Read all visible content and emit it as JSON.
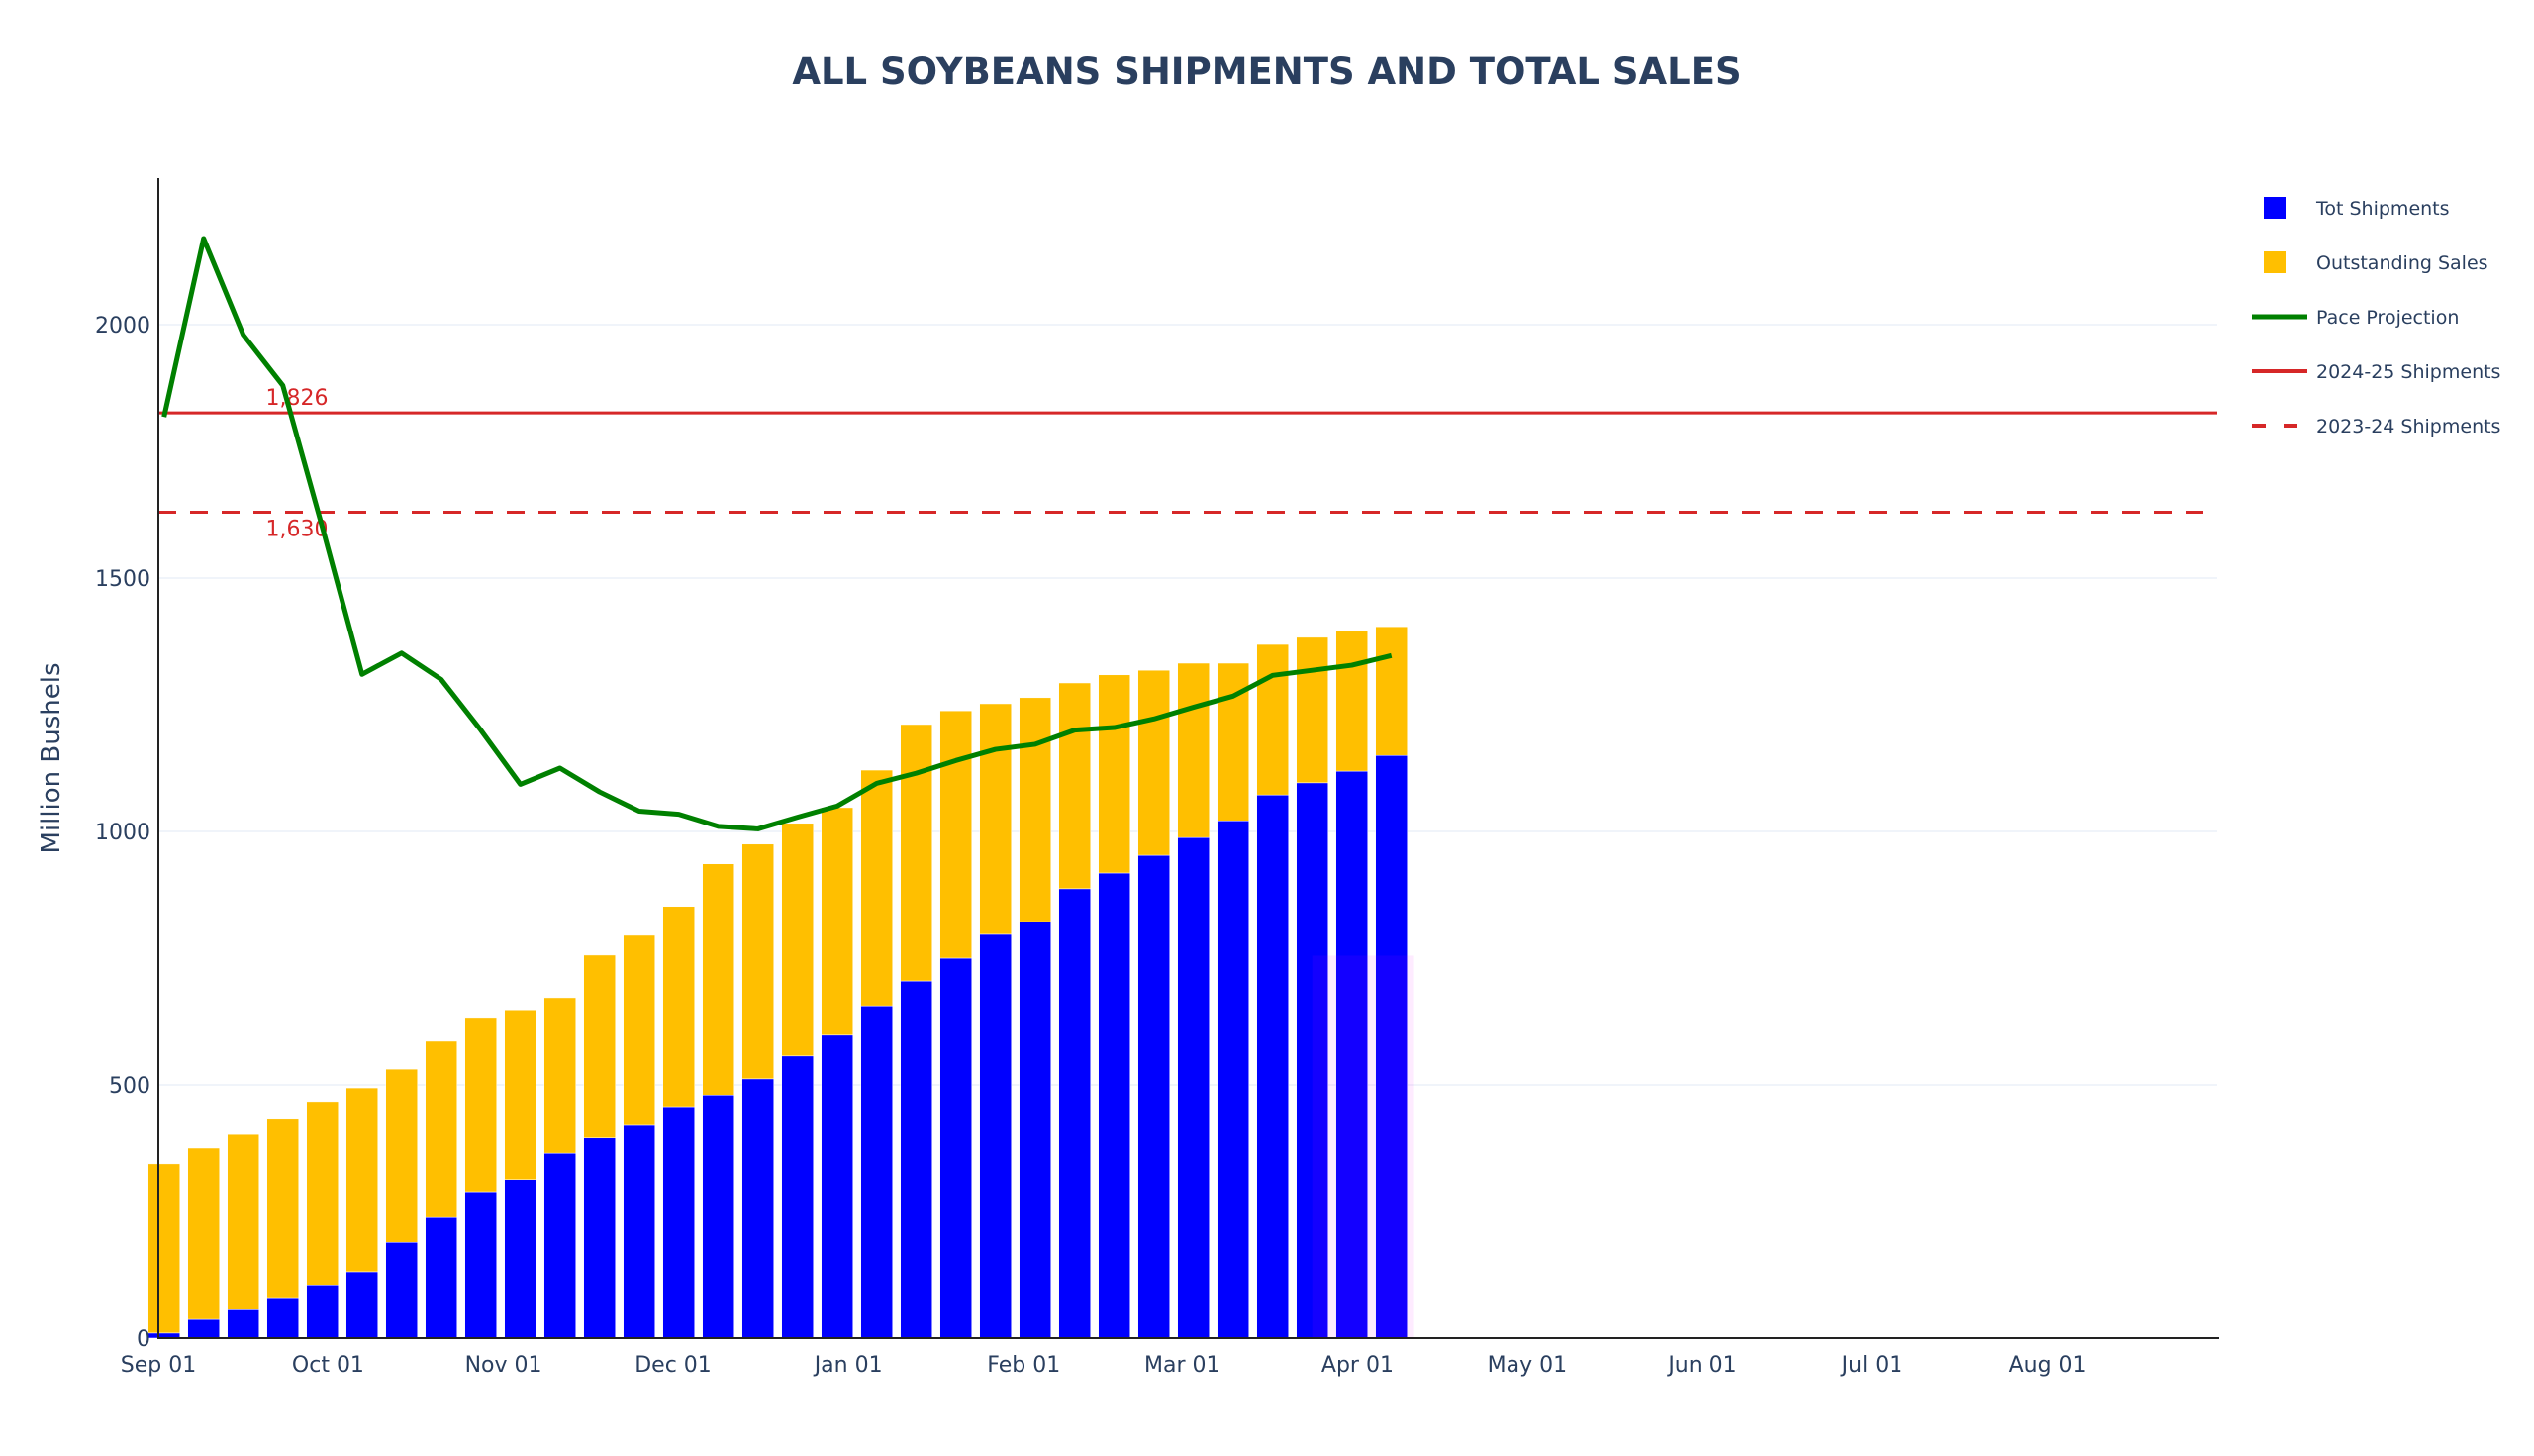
{
  "chart_data": {
    "type": "bar",
    "title": "ALL SOYBEANS SHIPMENTS AND TOTAL SALES",
    "xlabel": "",
    "ylabel": "Million Bushels",
    "ylim": [
      0,
      2280
    ],
    "yticks": [
      0,
      500,
      1000,
      1500,
      2000
    ],
    "grid": true,
    "legend_position": "right",
    "x_range": [
      "Aug 30",
      "Aug 31"
    ],
    "xtick_labels": [
      "Sep 01",
      "Oct 01",
      "Nov 01",
      "Dec 01",
      "Jan 01",
      "Feb 01",
      "Mar 01",
      "Apr 01",
      "May 01",
      "Jun 01",
      "Jul 01",
      "Aug 01"
    ],
    "xtick_days": [
      0,
      30,
      61,
      91,
      122,
      153,
      181,
      212,
      242,
      273,
      303,
      334
    ],
    "bar_days": [
      1,
      8,
      15,
      22,
      29,
      36,
      43,
      50,
      57,
      64,
      71,
      78,
      85,
      92,
      99,
      106,
      113,
      120,
      127,
      134,
      141,
      148,
      155,
      162,
      169,
      176,
      183,
      190,
      197,
      204,
      211,
      218
    ],
    "series": [
      {
        "name": "Tot Shipments",
        "type": "bar",
        "color": "#0000ff",
        "values": [
          10,
          37,
          58,
          80,
          105,
          131,
          189,
          238,
          289,
          313,
          365,
          395,
          420,
          457,
          480,
          512,
          557,
          598,
          656,
          705,
          750,
          797,
          822,
          887,
          918,
          953,
          988,
          1021,
          1072,
          1096,
          1119,
          1150
        ]
      },
      {
        "name": "Outstanding Sales",
        "type": "bar",
        "stacked_on": "Tot Shipments",
        "color": "#ffbf00",
        "values": [
          334,
          338,
          344,
          352,
          362,
          363,
          342,
          348,
          344,
          335,
          307,
          361,
          375,
          395,
          456,
          463,
          459,
          449,
          465,
          506,
          488,
          455,
          442,
          406,
          391,
          365,
          344,
          311,
          297,
          287,
          276,
          254
        ]
      },
      {
        "name": "Pace Projection",
        "type": "line",
        "color": "#008000",
        "values": [
          1818,
          2170,
          1980,
          1880,
          1600,
          1310,
          1352,
          1300,
          1200,
          1093,
          1125,
          1078,
          1040,
          1034,
          1010,
          1005,
          1028,
          1050,
          1095,
          1115,
          1140,
          1162,
          1172,
          1200,
          1205,
          1222,
          1245,
          1267,
          1308,
          1318,
          1328,
          1347
        ]
      },
      {
        "name": "2024-25 Shipments",
        "type": "hline",
        "color": "#d62728",
        "dash": "solid",
        "value": 1826,
        "label": "1,826"
      },
      {
        "name": "2023-24 Shipments",
        "type": "hline",
        "color": "#d62728",
        "dash": "dashed",
        "value": 1630,
        "label": "1,630"
      }
    ],
    "highlight_region": {
      "description": "faint purple shaded region over last two weeks",
      "color": "#ee00ff",
      "x_days": [
        204,
        222
      ],
      "y_range": [
        0,
        755
      ]
    }
  }
}
